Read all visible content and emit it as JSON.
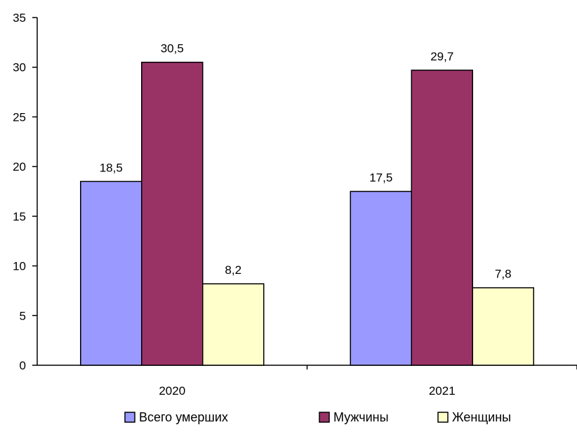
{
  "chart_data": {
    "type": "bar",
    "categories": [
      "2020",
      "2021"
    ],
    "series": [
      {
        "name": "Всего умерших",
        "values": [
          18.5,
          17.5
        ],
        "labels": [
          "18,5",
          "17,5"
        ],
        "color": "#9999ff"
      },
      {
        "name": "Мужчины",
        "values": [
          30.5,
          29.7
        ],
        "labels": [
          "30,5",
          "29,7"
        ],
        "color": "#993366"
      },
      {
        "name": "Женщины",
        "values": [
          8.2,
          7.8
        ],
        "labels": [
          "8,2",
          "7,8"
        ],
        "color": "#ffffcc"
      }
    ],
    "ylim": [
      0,
      35
    ],
    "yticks": [
      "0",
      "5",
      "10",
      "15",
      "20",
      "25",
      "30",
      "35"
    ],
    "grid": false,
    "legend": "bottom"
  }
}
